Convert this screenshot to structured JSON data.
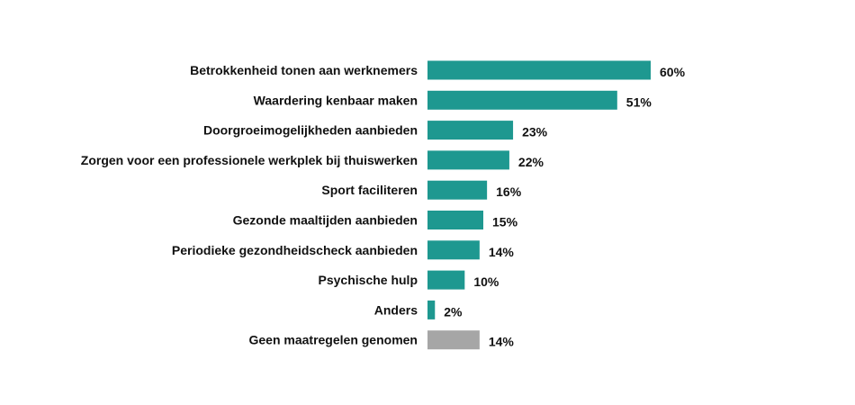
{
  "chart_data": {
    "type": "bar",
    "orientation": "horizontal",
    "title": "",
    "xlabel": "",
    "ylabel": "",
    "grid": false,
    "xlim": [
      0,
      60
    ],
    "categories": [
      "Betrokkenheid tonen aan werknemers",
      "Waardering kenbaar maken",
      "Doorgroeimogelijkheden aanbieden",
      "Zorgen voor een professionele werkplek bij thuiswerken",
      "Sport faciliteren",
      "Gezonde maaltijden aanbieden",
      "Periodieke gezondheidscheck aanbieden",
      "Psychische hulp",
      "Anders",
      "Geen maatregelen genomen"
    ],
    "values": [
      60,
      51,
      23,
      22,
      16,
      15,
      14,
      10,
      2,
      14
    ],
    "value_labels": [
      "60%",
      "51%",
      "23%",
      "22%",
      "16%",
      "15%",
      "14%",
      "10%",
      "2%",
      "14%"
    ],
    "colors": {
      "primary": "#1e9890",
      "highlight_last": "#a6a6a6"
    }
  }
}
